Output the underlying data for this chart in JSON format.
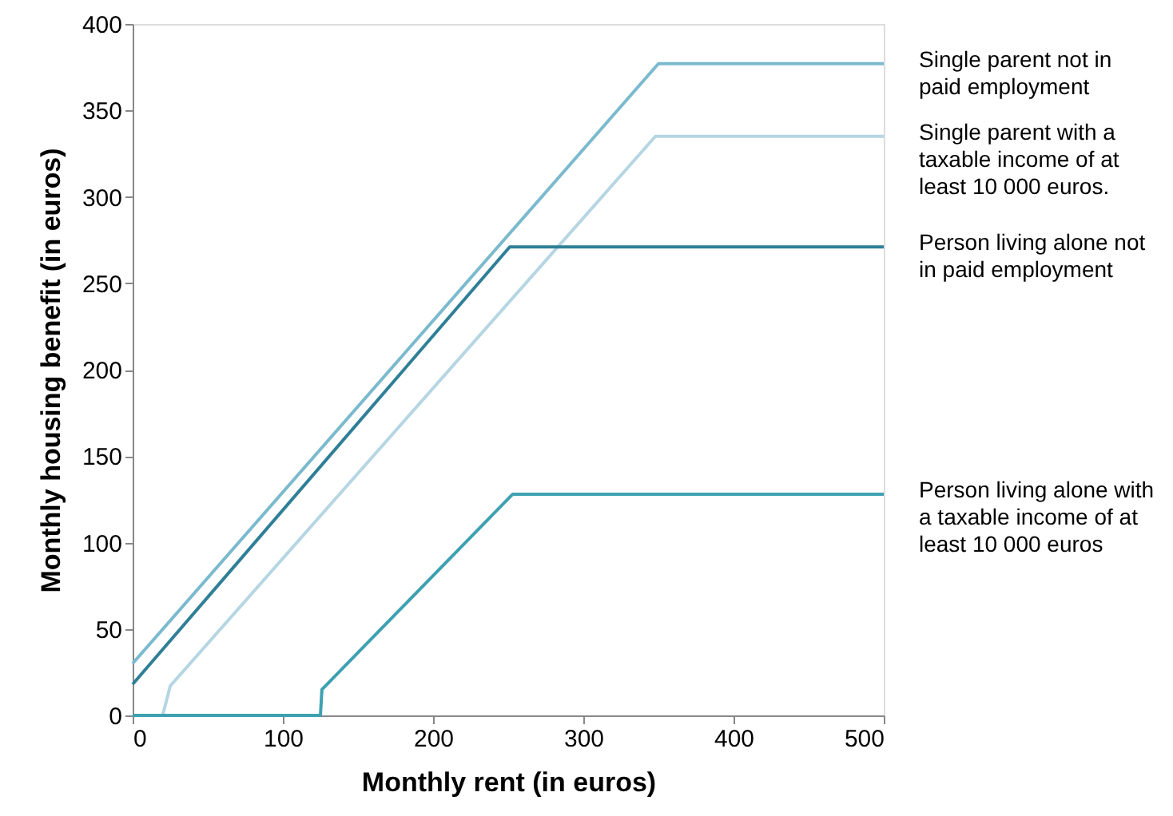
{
  "chart_data": {
    "type": "line",
    "xlabel": "Monthly rent (in euros)",
    "ylabel": "Monthly housing benefit (in euros)",
    "xlim": [
      0,
      500
    ],
    "xticks": [
      0,
      100,
      200,
      300,
      400,
      500
    ],
    "ylim": [
      0,
      400
    ],
    "yticks": [
      0,
      50,
      100,
      150,
      200,
      250,
      300,
      350,
      400
    ],
    "grid": false,
    "line_style": "solid",
    "marker": "none",
    "series": [
      {
        "name": "Single parent not in paid employment",
        "color": "#7bbace",
        "x": [
          0,
          350,
          500
        ],
        "values": [
          30,
          377,
          377
        ]
      },
      {
        "name": "Single parent with a taxable income of at least 10 000 euros.",
        "color": "#b5d6e2",
        "x": [
          0,
          20,
          25,
          348,
          500
        ],
        "values": [
          0,
          0,
          17,
          335,
          335
        ]
      },
      {
        "name": "Person living alone not in paid employment",
        "color": "#2f7f97",
        "x": [
          0,
          251,
          500
        ],
        "values": [
          18,
          271,
          271
        ]
      },
      {
        "name": "Person living alone with a taxable income of at least 10 000 euros",
        "color": "#3ea1b2",
        "x": [
          0,
          125,
          126,
          253,
          500
        ],
        "values": [
          0,
          0,
          15,
          128,
          128
        ]
      }
    ]
  }
}
